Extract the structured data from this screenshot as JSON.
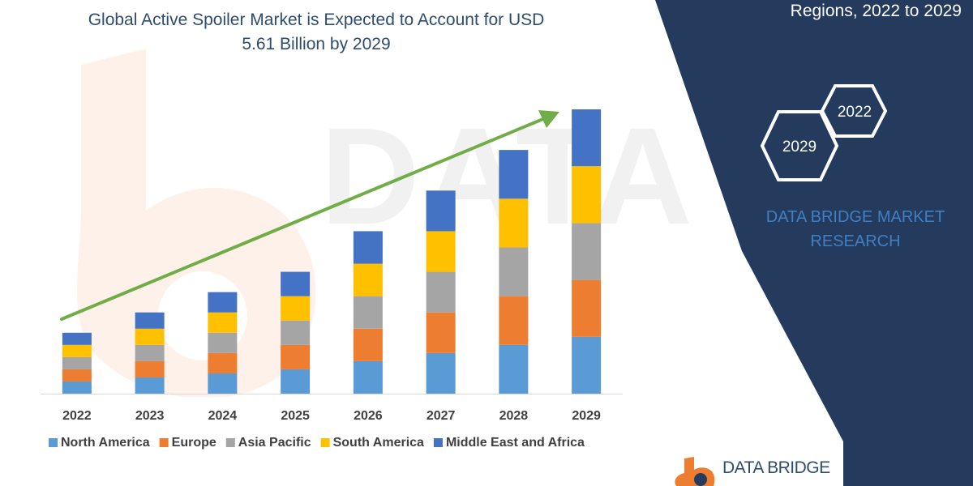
{
  "header": {
    "title_line1": "Global Active Spoiler Market is Expected to Account for USD",
    "title_line2": "5.61 Billion by 2029"
  },
  "panel": {
    "subtitle": "Regions, 2022 to 2029",
    "hex_front": "2029",
    "hex_back": "2022",
    "brand_line1": "DATA BRIDGE MARKET",
    "brand_line2": "RESEARCH",
    "footer_logo": "DATA BRIDGE"
  },
  "colors": {
    "panel_bg": "#243b5e",
    "trend_arrow": "#70ad47"
  },
  "chart_data": {
    "type": "bar",
    "stacked": true,
    "categories": [
      "2022",
      "2023",
      "2024",
      "2025",
      "2026",
      "2027",
      "2028",
      "2029"
    ],
    "series": [
      {
        "name": "North America",
        "color": "#5b9bd5",
        "values": [
          0.3,
          0.4,
          0.5,
          0.6,
          0.8,
          1.0,
          1.2,
          1.4
        ]
      },
      {
        "name": "Europe",
        "color": "#ed7d31",
        "values": [
          0.3,
          0.4,
          0.5,
          0.6,
          0.8,
          1.0,
          1.2,
          1.4
        ]
      },
      {
        "name": "Asia Pacific",
        "color": "#a5a5a5",
        "values": [
          0.3,
          0.4,
          0.5,
          0.6,
          0.8,
          1.0,
          1.2,
          1.4
        ]
      },
      {
        "name": "South America",
        "color": "#ffc000",
        "values": [
          0.3,
          0.4,
          0.5,
          0.6,
          0.8,
          1.0,
          1.2,
          1.4
        ]
      },
      {
        "name": "Middle East and Africa",
        "color": "#4472c4",
        "values": [
          0.3,
          0.4,
          0.5,
          0.6,
          0.8,
          1.0,
          1.2,
          1.4
        ]
      }
    ],
    "ylim": [
      0,
      7.0
    ],
    "grid": false,
    "legend": "bottom",
    "trend_arrow": true
  }
}
